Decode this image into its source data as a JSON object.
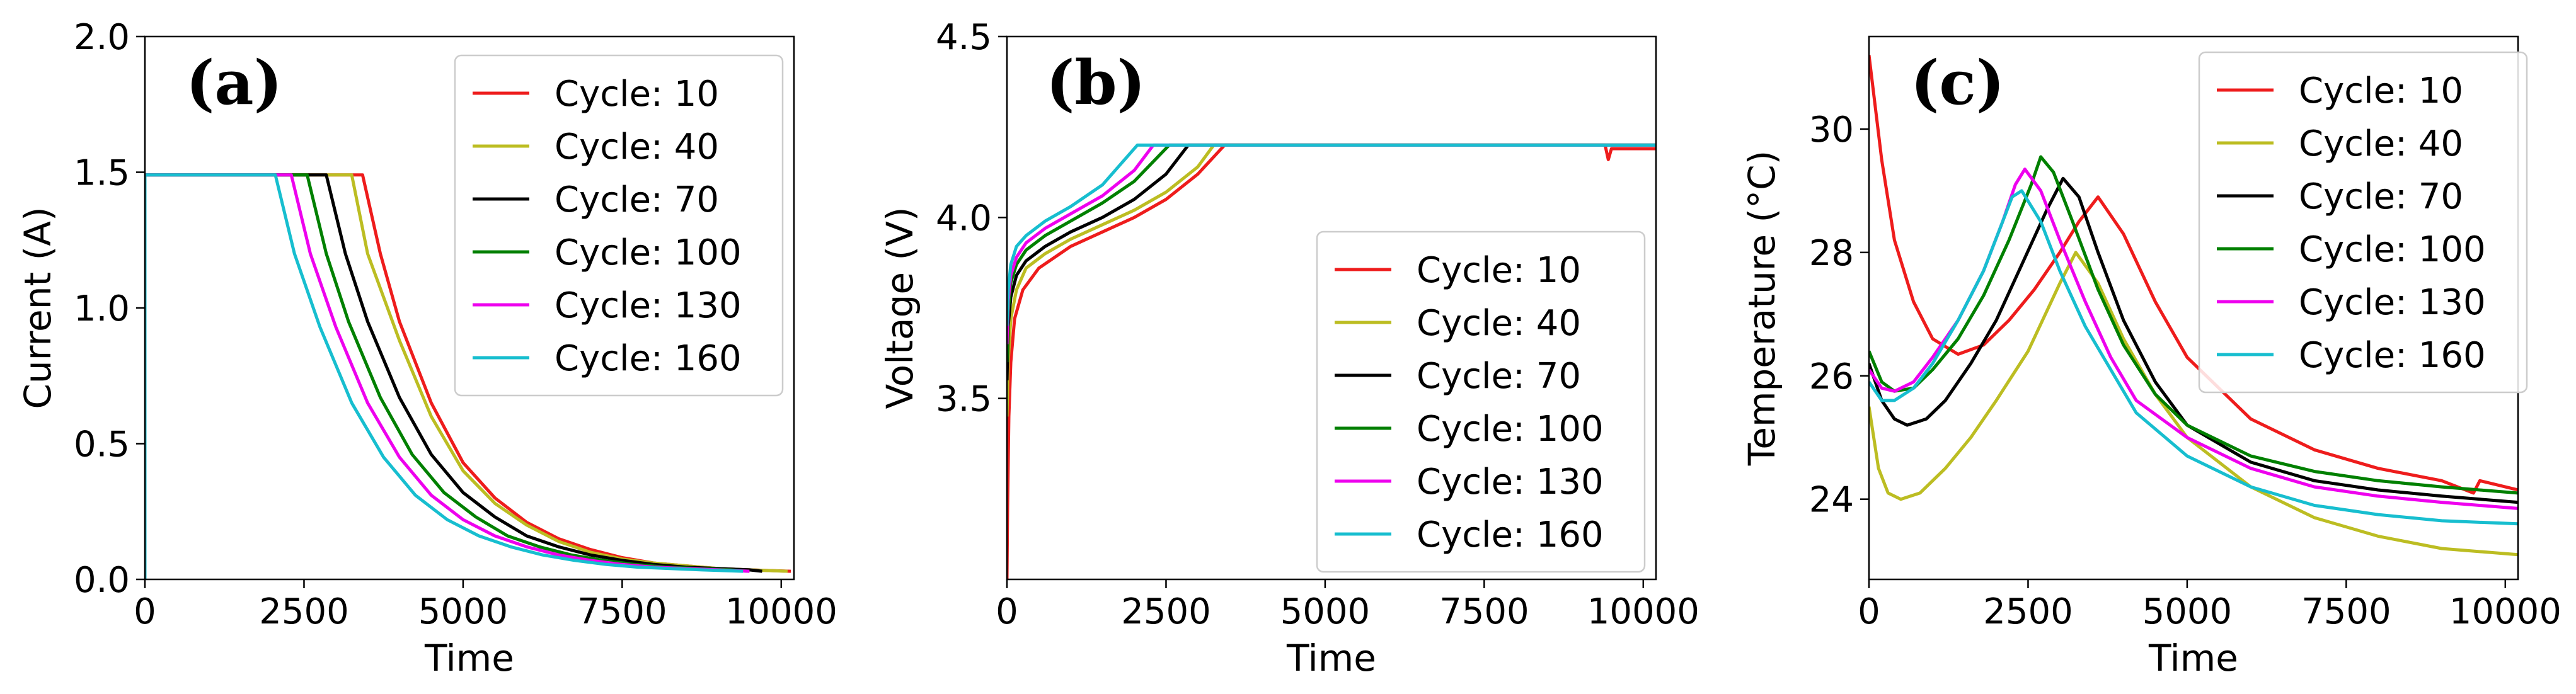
{
  "chart_data": [
    {
      "type": "line",
      "panel_label": "(a)",
      "xlabel": "Time",
      "ylabel": "Current (A)",
      "xlim": [
        0,
        10200
      ],
      "ylim": [
        0,
        2.0
      ],
      "xticks": [
        0,
        2500,
        5000,
        7500,
        10000
      ],
      "xtick_labels": [
        "0",
        "2500",
        "5000",
        "7500",
        "10000"
      ],
      "yticks": [
        0,
        0.5,
        1.0,
        1.5,
        2.0
      ],
      "ytick_labels": [
        "0.0",
        "0.5",
        "1.0",
        "1.5",
        "2.0"
      ],
      "legend_position": "top-right",
      "series": [
        {
          "name": "Cycle: 10",
          "color": "#ee1c1c",
          "x": [
            0,
            0,
            3420,
            3700,
            4000,
            4500,
            5000,
            5500,
            6000,
            6500,
            7000,
            7500,
            8000,
            8500,
            9000,
            9500,
            10150
          ],
          "y": [
            0,
            1.49,
            1.49,
            1.2,
            0.95,
            0.65,
            0.43,
            0.3,
            0.21,
            0.15,
            0.11,
            0.08,
            0.06,
            0.05,
            0.04,
            0.035,
            0.03
          ]
        },
        {
          "name": "Cycle: 40",
          "color": "#bcbd22",
          "x": [
            0,
            0,
            3250,
            3500,
            4000,
            4500,
            5000,
            5500,
            6000,
            6500,
            7000,
            7500,
            8000,
            8500,
            9000,
            9500,
            10100
          ],
          "y": [
            0,
            1.49,
            1.49,
            1.2,
            0.88,
            0.6,
            0.4,
            0.28,
            0.2,
            0.14,
            0.1,
            0.075,
            0.06,
            0.05,
            0.04,
            0.035,
            0.03
          ]
        },
        {
          "name": "Cycle: 70",
          "color": "#000000",
          "x": [
            0,
            0,
            2850,
            3150,
            3500,
            4000,
            4500,
            5000,
            5500,
            6000,
            6500,
            7000,
            7500,
            8000,
            8500,
            9000,
            9500,
            9700
          ],
          "y": [
            0,
            1.49,
            1.49,
            1.2,
            0.95,
            0.67,
            0.46,
            0.32,
            0.23,
            0.16,
            0.12,
            0.09,
            0.07,
            0.055,
            0.045,
            0.04,
            0.035,
            0.03
          ]
        },
        {
          "name": "Cycle: 100",
          "color": "#008000",
          "x": [
            0,
            0,
            2550,
            2850,
            3200,
            3700,
            4200,
            4700,
            5200,
            5700,
            6200,
            6700,
            7200,
            7700,
            8200,
            8700,
            9200,
            9500
          ],
          "y": [
            0,
            1.49,
            1.49,
            1.2,
            0.95,
            0.67,
            0.46,
            0.32,
            0.23,
            0.16,
            0.12,
            0.09,
            0.07,
            0.055,
            0.045,
            0.04,
            0.035,
            0.03
          ]
        },
        {
          "name": "Cycle: 130",
          "color": "#ee00ee",
          "x": [
            0,
            0,
            2300,
            2600,
            3000,
            3500,
            4000,
            4500,
            5000,
            5500,
            6000,
            6500,
            7000,
            7500,
            8000,
            8500,
            9000,
            9500
          ],
          "y": [
            0,
            1.49,
            1.49,
            1.2,
            0.93,
            0.65,
            0.45,
            0.31,
            0.22,
            0.16,
            0.12,
            0.09,
            0.07,
            0.055,
            0.045,
            0.04,
            0.035,
            0.03
          ]
        },
        {
          "name": "Cycle: 160",
          "color": "#17becf",
          "x": [
            0,
            0,
            2050,
            2350,
            2750,
            3250,
            3750,
            4250,
            4750,
            5250,
            5750,
            6250,
            6750,
            7250,
            7750,
            8250,
            8750,
            9400
          ],
          "y": [
            0,
            1.49,
            1.49,
            1.2,
            0.93,
            0.65,
            0.45,
            0.31,
            0.22,
            0.16,
            0.12,
            0.09,
            0.07,
            0.055,
            0.045,
            0.04,
            0.035,
            0.03
          ]
        }
      ]
    },
    {
      "type": "line",
      "panel_label": "(b)",
      "xlabel": "Time",
      "ylabel": "Voltage (V)",
      "xlim": [
        0,
        10200
      ],
      "ylim": [
        3.0,
        4.5
      ],
      "xticks": [
        0,
        2500,
        5000,
        7500,
        10000
      ],
      "xtick_labels": [
        "0",
        "2500",
        "5000",
        "7500",
        "10000"
      ],
      "yticks": [
        3.5,
        4.0,
        4.5
      ],
      "ytick_labels": [
        "3.5",
        "4.0",
        "4.5"
      ],
      "legend_position": "center-right",
      "series": [
        {
          "name": "Cycle: 10",
          "color": "#ee1c1c",
          "x": [
            0,
            10,
            30,
            60,
            120,
            250,
            500,
            1000,
            1500,
            2000,
            2500,
            3000,
            3420,
            9400,
            9450,
            9500,
            9600,
            10200
          ],
          "y": [
            3.0,
            3.2,
            3.45,
            3.6,
            3.72,
            3.8,
            3.86,
            3.92,
            3.96,
            4.0,
            4.05,
            4.12,
            4.2,
            4.2,
            4.16,
            4.19,
            4.19,
            4.19
          ]
        },
        {
          "name": "Cycle: 40",
          "color": "#bcbd22",
          "x": [
            0,
            20,
            60,
            150,
            300,
            600,
            1000,
            1500,
            2000,
            2500,
            3000,
            3250,
            10200
          ],
          "y": [
            3.45,
            3.6,
            3.72,
            3.8,
            3.86,
            3.9,
            3.94,
            3.98,
            4.02,
            4.07,
            4.14,
            4.2,
            4.2
          ]
        },
        {
          "name": "Cycle: 70",
          "color": "#000000",
          "x": [
            0,
            20,
            60,
            150,
            300,
            600,
            1000,
            1500,
            2000,
            2500,
            2850,
            10200
          ],
          "y": [
            3.55,
            3.7,
            3.78,
            3.84,
            3.88,
            3.92,
            3.96,
            4.0,
            4.05,
            4.12,
            4.2,
            4.2
          ]
        },
        {
          "name": "Cycle: 100",
          "color": "#008000",
          "x": [
            0,
            20,
            60,
            150,
            300,
            600,
            1000,
            1500,
            2000,
            2550,
            10200
          ],
          "y": [
            3.6,
            3.74,
            3.82,
            3.87,
            3.91,
            3.95,
            3.99,
            4.04,
            4.1,
            4.2,
            4.2
          ]
        },
        {
          "name": "Cycle: 130",
          "color": "#ee00ee",
          "x": [
            0,
            20,
            60,
            150,
            300,
            600,
            1000,
            1500,
            2000,
            2300,
            10200
          ],
          "y": [
            3.65,
            3.77,
            3.84,
            3.89,
            3.93,
            3.97,
            4.01,
            4.06,
            4.13,
            4.2,
            4.2
          ]
        },
        {
          "name": "Cycle: 160",
          "color": "#17becf",
          "x": [
            0,
            20,
            60,
            150,
            300,
            600,
            1000,
            1500,
            2050,
            10200
          ],
          "y": [
            3.7,
            3.8,
            3.87,
            3.92,
            3.95,
            3.99,
            4.03,
            4.09,
            4.2,
            4.2
          ]
        }
      ]
    },
    {
      "type": "line",
      "panel_label": "(c)",
      "xlabel": "Time",
      "ylabel": "Temperature (°C)",
      "xlim": [
        0,
        10200
      ],
      "ylim": [
        22.7,
        31.5
      ],
      "xticks": [
        0,
        2500,
        5000,
        7500,
        10000
      ],
      "xtick_labels": [
        "0",
        "2500",
        "5000",
        "7500",
        "10000"
      ],
      "yticks": [
        24,
        26,
        28,
        30
      ],
      "ytick_labels": [
        "24",
        "26",
        "28",
        "30"
      ],
      "legend_position": "top-right",
      "series": [
        {
          "name": "Cycle: 10",
          "color": "#ee1c1c",
          "x": [
            0,
            200,
            400,
            700,
            1000,
            1400,
            1800,
            2200,
            2600,
            3000,
            3300,
            3600,
            4000,
            4500,
            5000,
            6000,
            7000,
            8000,
            9000,
            9500,
            9600,
            10200
          ],
          "y": [
            31.2,
            29.5,
            28.2,
            27.2,
            26.6,
            26.35,
            26.5,
            26.9,
            27.4,
            28.0,
            28.5,
            28.9,
            28.3,
            27.2,
            26.3,
            25.3,
            24.8,
            24.5,
            24.3,
            24.1,
            24.3,
            24.15
          ]
        },
        {
          "name": "Cycle: 40",
          "color": "#bcbd22",
          "x": [
            0,
            150,
            300,
            500,
            800,
            1200,
            1600,
            2000,
            2500,
            3000,
            3250,
            3600,
            4000,
            4500,
            5000,
            6000,
            7000,
            8000,
            9000,
            10200
          ],
          "y": [
            25.5,
            24.5,
            24.1,
            24.0,
            24.1,
            24.5,
            25.0,
            25.6,
            26.4,
            27.5,
            28.0,
            27.5,
            26.6,
            25.7,
            25.0,
            24.2,
            23.7,
            23.4,
            23.2,
            23.1
          ]
        },
        {
          "name": "Cycle: 70",
          "color": "#000000",
          "x": [
            0,
            200,
            400,
            600,
            900,
            1200,
            1600,
            2000,
            2400,
            2800,
            3050,
            3300,
            3600,
            4000,
            4500,
            5000,
            6000,
            7000,
            8000,
            9000,
            10200
          ],
          "y": [
            26.2,
            25.6,
            25.3,
            25.2,
            25.3,
            25.6,
            26.2,
            26.9,
            27.8,
            28.7,
            29.2,
            28.9,
            28.0,
            26.9,
            25.9,
            25.2,
            24.6,
            24.3,
            24.15,
            24.05,
            23.95
          ]
        },
        {
          "name": "Cycle: 100",
          "color": "#008000",
          "x": [
            0,
            200,
            400,
            700,
            1000,
            1400,
            1800,
            2200,
            2550,
            2700,
            2900,
            3200,
            3600,
            4000,
            4500,
            5000,
            6000,
            7000,
            8000,
            9000,
            10200
          ],
          "y": [
            26.4,
            25.9,
            25.75,
            25.8,
            26.1,
            26.6,
            27.3,
            28.2,
            29.1,
            29.55,
            29.3,
            28.5,
            27.4,
            26.5,
            25.7,
            25.2,
            24.7,
            24.45,
            24.3,
            24.2,
            24.1
          ]
        },
        {
          "name": "Cycle: 130",
          "color": "#ee00ee",
          "x": [
            0,
            200,
            400,
            700,
            1000,
            1400,
            1800,
            2100,
            2300,
            2450,
            2700,
            3000,
            3400,
            3800,
            4200,
            5000,
            6000,
            7000,
            8000,
            9000,
            10200
          ],
          "y": [
            26.1,
            25.8,
            25.75,
            25.9,
            26.3,
            26.9,
            27.7,
            28.5,
            29.1,
            29.35,
            29.0,
            28.2,
            27.2,
            26.3,
            25.6,
            25.0,
            24.5,
            24.2,
            24.05,
            23.95,
            23.85
          ]
        },
        {
          "name": "Cycle: 160",
          "color": "#17becf",
          "x": [
            0,
            200,
            400,
            700,
            1000,
            1400,
            1800,
            2100,
            2250,
            2400,
            2700,
            3000,
            3400,
            3800,
            4200,
            5000,
            6000,
            7000,
            8000,
            9000,
            10200
          ],
          "y": [
            25.9,
            25.6,
            25.6,
            25.8,
            26.2,
            26.9,
            27.7,
            28.5,
            28.9,
            29.0,
            28.5,
            27.7,
            26.8,
            26.1,
            25.4,
            24.7,
            24.2,
            23.9,
            23.75,
            23.65,
            23.6
          ]
        }
      ]
    }
  ]
}
